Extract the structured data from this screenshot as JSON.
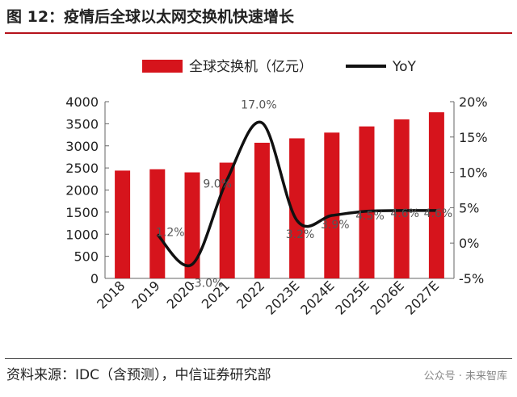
{
  "figure": {
    "title": "图 12：疫情后全球以太网交换机快速增长",
    "source": "资料来源：IDC（含预测），中信证券研究部",
    "watermark": "公众号 · 未来智库"
  },
  "colors": {
    "bar": "#d6141c",
    "line": "#111111",
    "rule": "#b5121b"
  },
  "chart_data": {
    "type": "bar",
    "categories": [
      "2018",
      "2019",
      "2020",
      "2021",
      "2022",
      "2023E",
      "2024E",
      "2025E",
      "2026E",
      "2027E"
    ],
    "series": [
      {
        "name": "全球交换机（亿元）",
        "type": "bar",
        "axis": "left",
        "values": [
          2440,
          2470,
          2400,
          2620,
          3070,
          3170,
          3300,
          3440,
          3600,
          3760
        ]
      },
      {
        "name": "YoY",
        "type": "line",
        "axis": "right",
        "values": [
          null,
          1.2,
          -3.0,
          9.0,
          17.0,
          3.2,
          3.9,
          4.5,
          4.6,
          4.6
        ],
        "labels": [
          "",
          "1.2%",
          "-3.0%",
          "9.0%",
          "17.0%",
          "3.2%",
          "3.9%",
          "4.5%",
          "4.6%",
          "4.6%"
        ]
      }
    ],
    "y_left": {
      "min": 0,
      "max": 4000,
      "ticks": [
        "0",
        "500",
        "1000",
        "1500",
        "2000",
        "2500",
        "3000",
        "3500",
        "4000"
      ]
    },
    "y_right": {
      "min": -5,
      "max": 20,
      "ticks": [
        "-5%",
        "0%",
        "5%",
        "10%",
        "15%",
        "20%"
      ]
    },
    "legend_position": "top",
    "grid": false
  }
}
